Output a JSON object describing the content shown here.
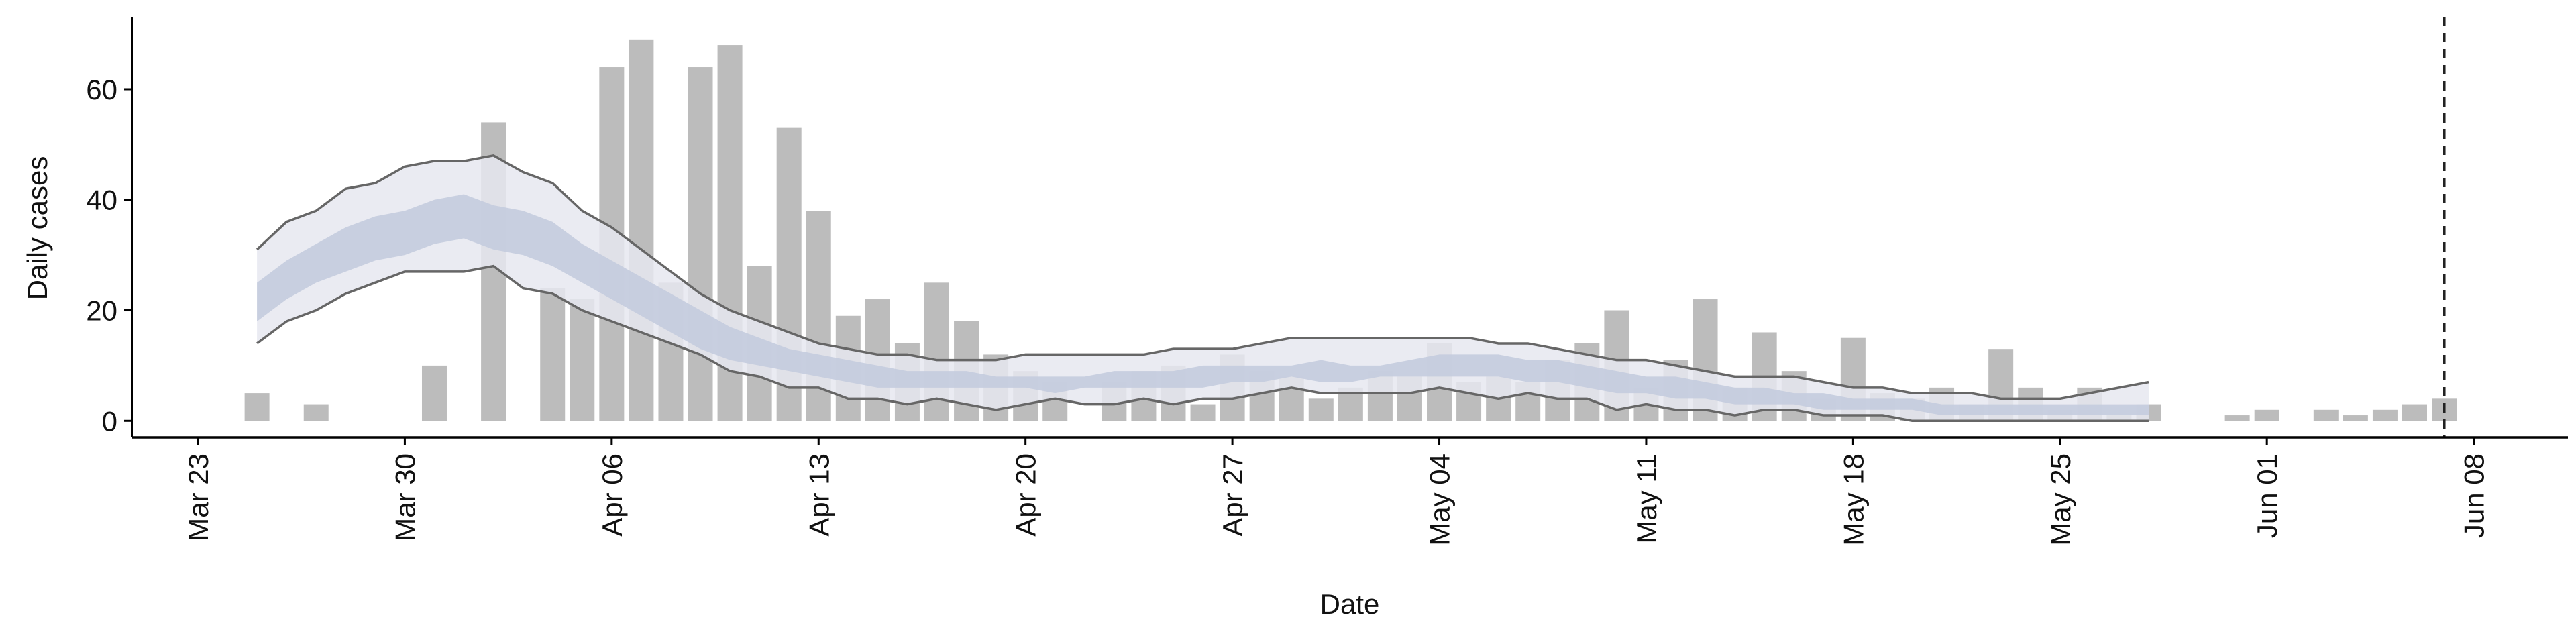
{
  "chart_data": {
    "type": "bar_band",
    "xlabel": "Date",
    "ylabel": "Daily cases",
    "categories": [
      "Mar 23",
      null,
      null,
      null,
      null,
      null,
      null,
      "Mar 30",
      null,
      null,
      null,
      null,
      null,
      null,
      "Apr 06",
      null,
      null,
      null,
      null,
      null,
      null,
      "Apr 13",
      null,
      null,
      null,
      null,
      null,
      null,
      "Apr 20",
      null,
      null,
      null,
      null,
      null,
      null,
      "Apr 27",
      null,
      null,
      null,
      null,
      null,
      null,
      "May 04",
      null,
      null,
      null,
      null,
      null,
      null,
      "May 11",
      null,
      null,
      null,
      null,
      null,
      null,
      "May 18",
      null,
      null,
      null,
      null,
      null,
      null,
      "May 25",
      null,
      null,
      null,
      null,
      null,
      null,
      "Jun 01",
      null,
      null,
      null,
      null,
      null,
      null,
      "Jun 08"
    ],
    "values": [
      0,
      0,
      5,
      0,
      3,
      0,
      0,
      0,
      10,
      0,
      54,
      0,
      24,
      22,
      64,
      69,
      25,
      64,
      68,
      28,
      53,
      38,
      19,
      22,
      14,
      25,
      18,
      12,
      9,
      7,
      0,
      7,
      9,
      10,
      3,
      12,
      9,
      8,
      4,
      6,
      9,
      8,
      14,
      7,
      8,
      7,
      11,
      14,
      20,
      6,
      11,
      22,
      6,
      16,
      9,
      4,
      15,
      5,
      4,
      6,
      3,
      13,
      6,
      2,
      6,
      1,
      3,
      0,
      0,
      1,
      2,
      0,
      2,
      1,
      2,
      3,
      4,
      0
    ],
    "outer_upper": [
      null,
      null,
      31,
      36,
      38,
      42,
      43,
      46,
      47,
      47,
      48,
      45,
      43,
      38,
      35,
      31,
      27,
      23,
      20,
      18,
      16,
      14,
      13,
      12,
      12,
      11,
      11,
      11,
      12,
      12,
      12,
      12,
      12,
      13,
      13,
      13,
      14,
      15,
      15,
      15,
      15,
      15,
      15,
      15,
      14,
      14,
      13,
      12,
      11,
      11,
      10,
      9,
      8,
      8,
      8,
      7,
      6,
      6,
      5,
      5,
      5,
      4,
      4,
      4,
      5,
      6,
      7,
      null,
      null,
      null,
      null,
      null,
      null,
      null,
      null,
      null,
      null,
      null
    ],
    "outer_lower": [
      null,
      null,
      14,
      18,
      20,
      23,
      25,
      27,
      27,
      27,
      28,
      24,
      23,
      20,
      18,
      16,
      14,
      12,
      9,
      8,
      6,
      6,
      4,
      4,
      3,
      4,
      3,
      2,
      3,
      4,
      3,
      3,
      4,
      3,
      4,
      4,
      5,
      6,
      5,
      5,
      5,
      5,
      6,
      5,
      4,
      5,
      4,
      4,
      2,
      3,
      2,
      2,
      1,
      2,
      2,
      1,
      1,
      1,
      0,
      0,
      0,
      0,
      0,
      0,
      0,
      0,
      0,
      null,
      null,
      null,
      null,
      null,
      null,
      null,
      null,
      null,
      null,
      null
    ],
    "inner_upper": [
      null,
      null,
      25,
      29,
      32,
      35,
      37,
      38,
      40,
      41,
      39,
      38,
      36,
      32,
      29,
      26,
      23,
      20,
      17,
      15,
      13,
      12,
      11,
      10,
      9,
      9,
      9,
      8,
      8,
      8,
      8,
      9,
      9,
      9,
      10,
      10,
      10,
      10,
      11,
      10,
      10,
      11,
      12,
      12,
      12,
      11,
      11,
      10,
      9,
      8,
      8,
      7,
      6,
      6,
      5,
      5,
      4,
      4,
      4,
      3,
      3,
      3,
      3,
      3,
      3,
      3,
      3,
      null,
      null,
      null,
      null,
      null,
      null,
      null,
      null,
      null,
      null,
      null
    ],
    "inner_lower": [
      null,
      null,
      18,
      22,
      25,
      27,
      29,
      30,
      32,
      33,
      31,
      30,
      28,
      25,
      22,
      19,
      16,
      13,
      11,
      10,
      9,
      8,
      7,
      6,
      6,
      6,
      6,
      6,
      6,
      5,
      6,
      6,
      6,
      6,
      6,
      7,
      7,
      8,
      7,
      7,
      8,
      8,
      8,
      8,
      8,
      7,
      7,
      6,
      5,
      5,
      4,
      4,
      3,
      3,
      3,
      2,
      2,
      2,
      2,
      1,
      1,
      1,
      1,
      1,
      1,
      1,
      1,
      null,
      null,
      null,
      null,
      null,
      null,
      null,
      null,
      null,
      null,
      null
    ],
    "bar_color": "#bcbcbc",
    "outer_color": "#e6e8f0",
    "inner_color": "#c2cadd",
    "line_color": "#666666",
    "vline": 76,
    "ylim": [
      -3,
      72.5
    ],
    "yticks": [
      0,
      20,
      40,
      60
    ]
  }
}
